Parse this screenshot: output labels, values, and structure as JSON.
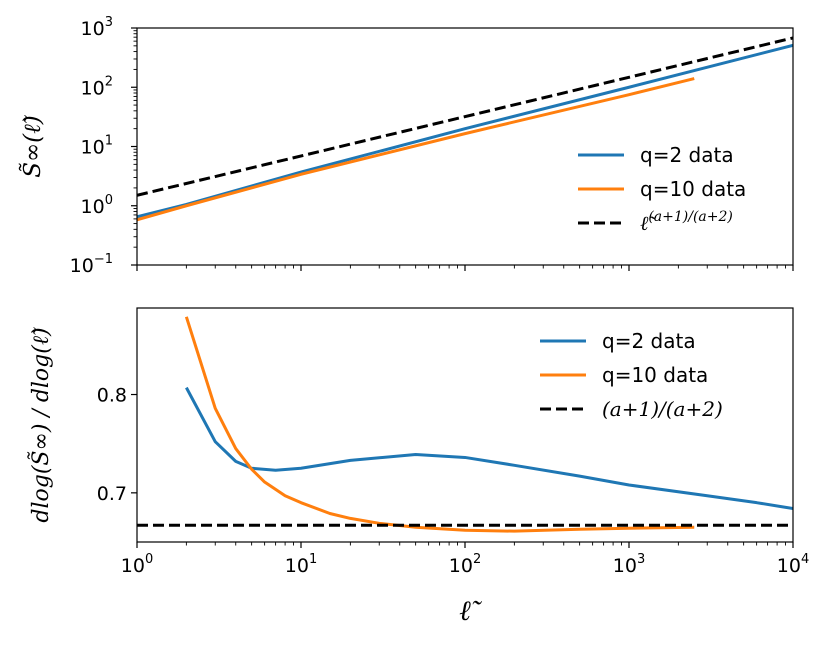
{
  "chart_data": [
    {
      "type": "line",
      "xscale": "log",
      "yscale": "log",
      "xlim": [
        1,
        10000
      ],
      "ylim": [
        0.1,
        1000
      ],
      "ylabel": "S̃∞(ℓ̃)",
      "xlabel": "",
      "xticks": [
        1,
        10,
        100,
        1000,
        10000
      ],
      "yticks": [
        {
          "value": 0.1,
          "base": "10",
          "exp": "−1"
        },
        {
          "value": 1,
          "base": "10",
          "exp": "0"
        },
        {
          "value": 10,
          "base": "10",
          "exp": "1"
        },
        {
          "value": 100,
          "base": "10",
          "exp": "2"
        },
        {
          "value": 1000,
          "base": "10",
          "exp": "3"
        }
      ],
      "legend_position": "lower-right",
      "series": [
        {
          "name": "q=2 data",
          "color": "#1f77b4",
          "style": "solid",
          "x": [
            1,
            2,
            10,
            100,
            1000,
            10000
          ],
          "y": [
            0.65,
            1.05,
            3.7,
            20,
            100,
            510
          ]
        },
        {
          "name": "q=10 data",
          "color": "#ff7f0e",
          "style": "solid",
          "x": [
            1,
            2,
            10,
            100,
            1000,
            2500
          ],
          "y": [
            0.58,
            1.0,
            3.4,
            16.5,
            75,
            140
          ]
        },
        {
          "name": "ℓ̃^((a+1)/(a+2))",
          "color": "#000000",
          "style": "dashed",
          "x": [
            1,
            10000
          ],
          "y": [
            1.5,
            680
          ]
        }
      ]
    },
    {
      "type": "line",
      "xscale": "log",
      "yscale": "linear",
      "xlim": [
        1,
        10000
      ],
      "ylim": [
        0.65,
        0.888
      ],
      "xlabel": "ℓ̃",
      "ylabel": "dlog(S̃∞) / dlog(ℓ̃)",
      "xticks": [
        {
          "value": 1,
          "base": "10",
          "exp": "0"
        },
        {
          "value": 10,
          "base": "10",
          "exp": "1"
        },
        {
          "value": 100,
          "base": "10",
          "exp": "2"
        },
        {
          "value": 1000,
          "base": "10",
          "exp": "3"
        },
        {
          "value": 10000,
          "base": "10",
          "exp": "4"
        }
      ],
      "yticks": [
        {
          "value": 0.7,
          "label": "0.7"
        },
        {
          "value": 0.8,
          "label": "0.8"
        }
      ],
      "legend_position": "upper-right",
      "series": [
        {
          "name": "q=2 data",
          "color": "#1f77b4",
          "style": "solid",
          "x": [
            2,
            3,
            4,
            5,
            7,
            10,
            20,
            50,
            100,
            200,
            500,
            1000,
            3000,
            6000,
            10000
          ],
          "y": [
            0.807,
            0.752,
            0.732,
            0.725,
            0.723,
            0.725,
            0.733,
            0.739,
            0.736,
            0.728,
            0.717,
            0.708,
            0.697,
            0.69,
            0.684
          ]
        },
        {
          "name": "q=10 data",
          "color": "#ff7f0e",
          "style": "solid",
          "x": [
            2,
            3,
            4,
            5,
            6,
            8,
            10,
            15,
            20,
            30,
            50,
            100,
            200,
            500,
            1000,
            2500
          ],
          "y": [
            0.879,
            0.786,
            0.745,
            0.724,
            0.711,
            0.697,
            0.69,
            0.679,
            0.674,
            0.669,
            0.665,
            0.662,
            0.661,
            0.663,
            0.664,
            0.665
          ]
        },
        {
          "name": "(a+1)/(a+2)",
          "color": "#000000",
          "style": "dashed",
          "x": [
            1,
            10000
          ],
          "y": [
            0.667,
            0.667
          ]
        }
      ]
    }
  ]
}
